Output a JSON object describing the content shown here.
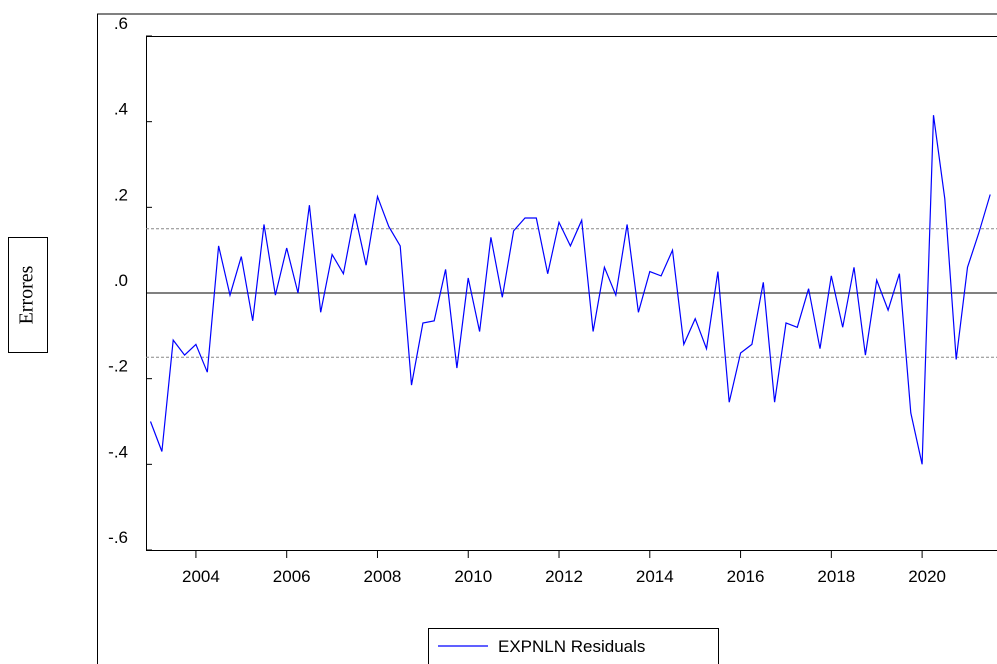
{
  "chart_data": {
    "type": "line",
    "y_label": "Errores",
    "xlim": [
      2002.9,
      2021.65
    ],
    "xticks": [
      2004,
      2006,
      2008,
      2010,
      2012,
      2014,
      2016,
      2018,
      2020
    ],
    "ylim": [
      -0.6,
      0.6
    ],
    "yticks": [
      {
        "value": 0.6,
        "label": ".6"
      },
      {
        "value": 0.4,
        "label": ".4"
      },
      {
        "value": 0.2,
        "label": ".2"
      },
      {
        "value": 0,
        "label": ".0"
      },
      {
        "value": -0.2,
        "label": "-.2"
      },
      {
        "value": -0.4,
        "label": "-.4"
      },
      {
        "value": -0.6,
        "label": "-.6"
      }
    ],
    "bands": [
      -0.15,
      0.15
    ],
    "x": [
      2003,
      2003.25,
      2003.5,
      2003.75,
      2004,
      2004.25,
      2004.5,
      2004.75,
      2005,
      2005.25,
      2005.5,
      2005.75,
      2006,
      2006.25,
      2006.5,
      2006.75,
      2007,
      2007.25,
      2007.5,
      2007.75,
      2008,
      2008.25,
      2008.5,
      2008.75,
      2009,
      2009.25,
      2009.5,
      2009.75,
      2010,
      2010.25,
      2010.5,
      2010.75,
      2011,
      2011.25,
      2011.5,
      2011.75,
      2012,
      2012.25,
      2012.5,
      2012.75,
      2013,
      2013.25,
      2013.5,
      2013.75,
      2014,
      2014.25,
      2014.5,
      2014.75,
      2015,
      2015.25,
      2015.5,
      2015.75,
      2016,
      2016.25,
      2016.5,
      2016.75,
      2017,
      2017.25,
      2017.5,
      2017.75,
      2018,
      2018.25,
      2018.5,
      2018.75,
      2019,
      2019.25,
      2019.5,
      2019.75,
      2020,
      2020.25,
      2020.5,
      2020.75,
      2021,
      2021.25,
      2021.5
    ],
    "series": [
      {
        "name": "EXPNLN Residuals",
        "color": "#0000ff",
        "values": [
          -0.3,
          -0.37,
          -0.11,
          -0.145,
          -0.12,
          -0.185,
          0.11,
          -0.005,
          0.085,
          -0.065,
          0.16,
          -0.005,
          0.105,
          0.0,
          0.205,
          -0.045,
          0.09,
          0.045,
          0.185,
          0.065,
          0.225,
          0.155,
          0.11,
          -0.215,
          -0.07,
          -0.065,
          0.055,
          -0.175,
          0.035,
          -0.09,
          0.13,
          -0.01,
          0.145,
          0.175,
          0.175,
          0.045,
          0.165,
          0.11,
          0.17,
          -0.09,
          0.06,
          -0.005,
          0.16,
          -0.045,
          0.05,
          0.04,
          0.1,
          -0.12,
          -0.06,
          -0.13,
          0.05,
          -0.255,
          -0.14,
          -0.12,
          0.025,
          -0.255,
          -0.07,
          -0.08,
          0.01,
          -0.13,
          0.04,
          -0.08,
          0.06,
          -0.145,
          0.03,
          -0.04,
          0.045,
          -0.28,
          -0.4,
          0.415,
          0.22,
          -0.155,
          0.06,
          0.14,
          0.23
        ]
      }
    ]
  }
}
